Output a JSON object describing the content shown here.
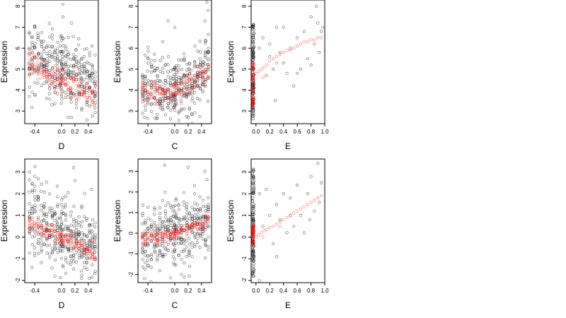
{
  "chart_data": [
    {
      "type": "scatter",
      "xlabel": "D",
      "ylabel": "Expression",
      "xlim": [
        -0.55,
        0.55
      ],
      "ylim": [
        2.4,
        8.3
      ],
      "xticks": [
        -0.4,
        0,
        0.2,
        0.4
      ],
      "xtick_labels": [
        "-0.4",
        "0.0",
        "0.2",
        "0.4"
      ],
      "yticks": [
        3,
        4,
        5,
        6,
        7,
        8
      ],
      "ytick_labels": [
        "3",
        "4",
        "5",
        "6",
        "7",
        "8"
      ],
      "marker": "open-circle",
      "series_colors": {
        "observed": "#000000",
        "fitted": "#ff0000"
      },
      "x_groups": [
        -0.48,
        -0.44,
        -0.4,
        -0.35,
        -0.3,
        -0.26,
        -0.22,
        -0.18,
        -0.14,
        -0.1,
        -0.06,
        -0.02,
        0.0,
        0.02,
        0.06,
        0.1,
        0.14,
        0.18,
        0.22,
        0.26,
        0.3,
        0.34,
        0.38,
        0.42,
        0.46,
        0.5
      ],
      "observed_trend": [
        5.0,
        -1.25,
        0.0
      ],
      "observed_spread": 0.8,
      "observed_per_group": 14,
      "fitted_trend": [
        4.5,
        -1.3,
        0.0
      ],
      "fitted_spread": 0.3,
      "fitted_per_group": 6,
      "extra_points": [
        [
          0.02,
          8.1
        ],
        [
          0.02,
          7.5
        ],
        [
          0.0,
          6.6
        ],
        [
          0.15,
          7.2
        ],
        [
          -0.4,
          7.0
        ],
        [
          0.1,
          2.7
        ],
        [
          0.15,
          2.7
        ]
      ]
    },
    {
      "type": "scatter",
      "xlabel": "C",
      "ylabel": "Expression",
      "xlim": [
        -0.55,
        0.55
      ],
      "ylim": [
        2.4,
        8.3
      ],
      "xticks": [
        -0.4,
        0,
        0.2,
        0.4
      ],
      "xtick_labels": [
        "-0.4",
        "0.0",
        "0.2",
        "0.4"
      ],
      "yticks": [
        3,
        4,
        5,
        6,
        7,
        8
      ],
      "ytick_labels": [
        "3",
        "4",
        "5",
        "6",
        "7",
        "8"
      ],
      "marker": "open-circle",
      "series_colors": {
        "observed": "#000000",
        "fitted": "#ff0000"
      },
      "x_groups": [
        -0.48,
        -0.44,
        -0.4,
        -0.35,
        -0.3,
        -0.26,
        -0.22,
        -0.18,
        -0.14,
        -0.1,
        -0.06,
        -0.02,
        0.0,
        0.02,
        0.06,
        0.1,
        0.14,
        0.18,
        0.22,
        0.26,
        0.3,
        0.34,
        0.38,
        0.42,
        0.46,
        0.5
      ],
      "observed_trend": [
        4.1,
        0.6,
        2.4
      ],
      "observed_spread": 0.8,
      "observed_per_group": 14,
      "fitted_trend": [
        4.0,
        0.9,
        2.2
      ],
      "fitted_spread": 0.3,
      "fitted_per_group": 6,
      "extra_points": [
        [
          0.48,
          8.2
        ],
        [
          0.5,
          7.8
        ],
        [
          -0.1,
          7.3
        ],
        [
          0.0,
          7.0
        ],
        [
          0.45,
          7.3
        ],
        [
          -0.45,
          2.7
        ],
        [
          0.2,
          2.7
        ]
      ]
    },
    {
      "type": "scatter",
      "xlabel": "E",
      "ylabel": "Expression",
      "xlim": [
        -0.07,
        1.0
      ],
      "ylim": [
        2.4,
        8.3
      ],
      "xticks": [
        0,
        0.2,
        0.4,
        0.6,
        0.8,
        1.0
      ],
      "xtick_labels": [
        "0.0",
        "0.2",
        "0.4",
        "0.6",
        "0.8",
        "1.0"
      ],
      "yticks": [
        3,
        4,
        5,
        6,
        7,
        8
      ],
      "ytick_labels": [
        "3",
        "4",
        "5",
        "6",
        "7",
        "8"
      ],
      "marker": "open-circle",
      "series_colors": {
        "observed": "#000000",
        "fitted": "#ff0000"
      },
      "cluster": {
        "x": -0.04,
        "observed_range": [
          2.6,
          7.2
        ],
        "observed_count": 90,
        "fitted_range": [
          3.2,
          5.3
        ],
        "fitted_count": 45
      },
      "observed_points": [
        [
          0.05,
          6.0
        ],
        [
          0.1,
          6.5
        ],
        [
          0.15,
          4.7
        ],
        [
          0.2,
          6.2
        ],
        [
          0.25,
          5.0
        ],
        [
          0.28,
          3.5
        ],
        [
          0.3,
          7.0
        ],
        [
          0.35,
          5.8
        ],
        [
          0.4,
          7.0
        ],
        [
          0.45,
          4.8
        ],
        [
          0.5,
          6.0
        ],
        [
          0.55,
          4.2
        ],
        [
          0.6,
          6.5
        ],
        [
          0.65,
          5.0
        ],
        [
          0.7,
          6.8
        ],
        [
          0.75,
          5.5
        ],
        [
          0.8,
          7.5
        ],
        [
          0.85,
          6.2
        ],
        [
          0.9,
          7.2
        ],
        [
          0.95,
          6.8
        ],
        [
          0.92,
          5.8
        ],
        [
          0.8,
          5.2
        ],
        [
          0.6,
          4.8
        ],
        [
          0.4,
          5.3
        ],
        [
          0.2,
          5.6
        ],
        [
          0.88,
          8.0
        ],
        [
          0.97,
          7.0
        ]
      ],
      "fitted_points": [
        [
          0.0,
          4.8
        ],
        [
          0.04,
          4.9
        ],
        [
          0.08,
          5.0
        ],
        [
          0.12,
          5.1
        ],
        [
          0.16,
          5.2
        ],
        [
          0.2,
          5.4
        ],
        [
          0.25,
          5.5
        ],
        [
          0.3,
          5.6
        ],
        [
          0.35,
          5.7
        ],
        [
          0.4,
          5.8
        ],
        [
          0.45,
          5.9
        ],
        [
          0.5,
          5.9
        ],
        [
          0.55,
          6.0
        ],
        [
          0.6,
          6.1
        ],
        [
          0.65,
          6.2
        ],
        [
          0.7,
          6.3
        ],
        [
          0.75,
          6.3
        ],
        [
          0.8,
          6.4
        ],
        [
          0.85,
          6.4
        ],
        [
          0.9,
          6.5
        ],
        [
          0.95,
          6.5
        ],
        [
          0.1,
          4.6
        ],
        [
          0.3,
          5.3
        ]
      ]
    },
    {
      "type": "scatter",
      "xlabel": "D",
      "ylabel": "Expression",
      "xlim": [
        -0.55,
        0.55
      ],
      "ylim": [
        -2.1,
        3.6
      ],
      "xticks": [
        -0.4,
        0,
        0.2,
        0.4
      ],
      "xtick_labels": [
        "-0.4",
        "0.0",
        "0.2",
        "0.4"
      ],
      "yticks": [
        -2,
        -1,
        0,
        1,
        2,
        3
      ],
      "ytick_labels": [
        "-2",
        "-1",
        "0",
        "1",
        "2",
        "3"
      ],
      "marker": "open-circle",
      "series_colors": {
        "observed": "#000000",
        "fitted": "#ff0000"
      },
      "x_groups": [
        -0.48,
        -0.44,
        -0.4,
        -0.35,
        -0.3,
        -0.26,
        -0.22,
        -0.18,
        -0.14,
        -0.1,
        -0.06,
        -0.02,
        0.0,
        0.02,
        0.06,
        0.1,
        0.14,
        0.18,
        0.22,
        0.26,
        0.3,
        0.34,
        0.38,
        0.42,
        0.46,
        0.5
      ],
      "observed_trend": [
        0.3,
        -1.4,
        0.0
      ],
      "observed_spread": 0.85,
      "observed_per_group": 14,
      "fitted_trend": [
        0.0,
        -1.4,
        0.0
      ],
      "fitted_spread": 0.2,
      "fitted_per_group": 6,
      "extra_points": [
        [
          0.18,
          3.2
        ],
        [
          0.2,
          2.6
        ],
        [
          -0.4,
          2.8
        ],
        [
          -0.35,
          2.7
        ],
        [
          0.45,
          2.2
        ],
        [
          0.3,
          -1.9
        ],
        [
          -0.1,
          -1.8
        ]
      ]
    },
    {
      "type": "scatter",
      "xlabel": "C",
      "ylabel": "Expression",
      "xlim": [
        -0.55,
        0.55
      ],
      "ylim": [
        -2.4,
        3.6
      ],
      "xticks": [
        -0.4,
        0,
        0.2,
        0.4
      ],
      "xtick_labels": [
        "-0.4",
        "0.0",
        "0.2",
        "0.4"
      ],
      "yticks": [
        -2,
        -1,
        0,
        1,
        2,
        3
      ],
      "ytick_labels": [
        "-2",
        "-1",
        "0",
        "1",
        "2",
        "3"
      ],
      "marker": "open-circle",
      "series_colors": {
        "observed": "#000000",
        "fitted": "#ff0000"
      },
      "x_groups": [
        -0.48,
        -0.44,
        -0.4,
        -0.35,
        -0.3,
        -0.26,
        -0.22,
        -0.18,
        -0.14,
        -0.1,
        -0.06,
        -0.02,
        0.0,
        0.02,
        0.06,
        0.1,
        0.14,
        0.18,
        0.22,
        0.26,
        0.3,
        0.34,
        0.38,
        0.42,
        0.46,
        0.5
      ],
      "observed_trend": [
        0.0,
        0.8,
        1.0
      ],
      "observed_spread": 0.85,
      "observed_per_group": 14,
      "fitted_trend": [
        0.0,
        0.9,
        0.8
      ],
      "fitted_spread": 0.15,
      "fitted_per_group": 6,
      "extra_points": [
        [
          -0.15,
          3.3
        ],
        [
          0.2,
          3.2
        ],
        [
          0.45,
          3.0
        ],
        [
          0.48,
          2.6
        ],
        [
          -0.45,
          -2.2
        ],
        [
          0.1,
          -2.0
        ]
      ]
    },
    {
      "type": "scatter",
      "xlabel": "E",
      "ylabel": "Expression",
      "xlim": [
        -0.07,
        1.0
      ],
      "ylim": [
        -2.1,
        3.6
      ],
      "xticks": [
        0,
        0.2,
        0.4,
        0.6,
        0.8,
        1.0
      ],
      "xtick_labels": [
        "0.0",
        "0.2",
        "0.4",
        "0.6",
        "0.8",
        "1.0"
      ],
      "yticks": [
        -2,
        -1,
        0,
        1,
        2,
        3
      ],
      "ytick_labels": [
        "-2",
        "-1",
        "0",
        "1",
        "2",
        "3"
      ],
      "marker": "open-circle",
      "series_colors": {
        "observed": "#000000",
        "fitted": "#ff0000"
      },
      "cluster": {
        "x": -0.04,
        "observed_range": [
          -2.0,
          3.2
        ],
        "observed_count": 90,
        "fitted_range": [
          -0.4,
          0.6
        ],
        "fitted_count": 40
      },
      "observed_points": [
        [
          0.05,
          2.0
        ],
        [
          0.1,
          0.5
        ],
        [
          0.15,
          2.2
        ],
        [
          0.2,
          1.0
        ],
        [
          0.25,
          -0.3
        ],
        [
          0.3,
          1.5
        ],
        [
          0.35,
          0.8
        ],
        [
          0.4,
          2.0
        ],
        [
          0.45,
          0.2
        ],
        [
          0.5,
          1.8
        ],
        [
          0.55,
          0.5
        ],
        [
          0.6,
          2.4
        ],
        [
          0.65,
          1.0
        ],
        [
          0.7,
          0.2
        ],
        [
          0.75,
          2.0
        ],
        [
          0.8,
          2.8
        ],
        [
          0.85,
          1.2
        ],
        [
          0.9,
          3.4
        ],
        [
          0.95,
          2.5
        ],
        [
          0.92,
          1.6
        ],
        [
          0.78,
          0.8
        ],
        [
          0.3,
          -0.9
        ],
        [
          0.05,
          -2.0
        ],
        [
          0.5,
          1.0
        ]
      ],
      "fitted_points": [
        [
          0.0,
          0.0
        ],
        [
          0.04,
          0.1
        ],
        [
          0.08,
          0.2
        ],
        [
          0.12,
          0.3
        ],
        [
          0.16,
          0.35
        ],
        [
          0.2,
          0.45
        ],
        [
          0.25,
          0.5
        ],
        [
          0.3,
          0.6
        ],
        [
          0.35,
          0.7
        ],
        [
          0.4,
          0.8
        ],
        [
          0.45,
          0.9
        ],
        [
          0.5,
          1.0
        ],
        [
          0.55,
          1.1
        ],
        [
          0.6,
          1.2
        ],
        [
          0.65,
          1.3
        ],
        [
          0.7,
          1.4
        ],
        [
          0.75,
          1.5
        ],
        [
          0.8,
          1.6
        ],
        [
          0.85,
          1.7
        ],
        [
          0.9,
          1.8
        ],
        [
          0.95,
          1.9
        ],
        [
          0.1,
          0.0
        ],
        [
          0.35,
          0.5
        ]
      ]
    }
  ]
}
